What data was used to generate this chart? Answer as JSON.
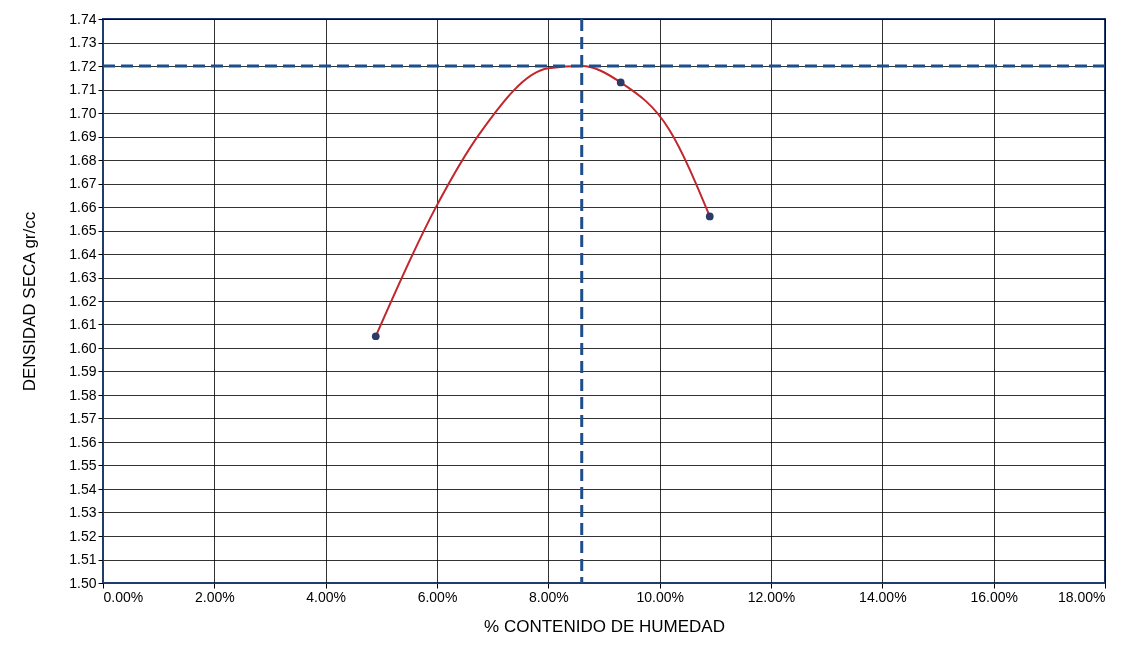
{
  "chart_data": {
    "type": "scatter",
    "xlabel": "% CONTENIDO  DE HUMEDAD",
    "ylabel": "DENSIDAD  SECA  gr/cc",
    "xlim": [
      0,
      18
    ],
    "xticks": [
      {
        "value": 0,
        "label": "0.00%"
      },
      {
        "value": 2,
        "label": "2.00%"
      },
      {
        "value": 4,
        "label": "4.00%"
      },
      {
        "value": 6,
        "label": "6.00%"
      },
      {
        "value": 8,
        "label": "8.00%"
      },
      {
        "value": 10,
        "label": "10.00%"
      },
      {
        "value": 12,
        "label": "12.00%"
      },
      {
        "value": 14,
        "label": "14.00%"
      },
      {
        "value": 16,
        "label": "16.00%"
      },
      {
        "value": 18,
        "label": "18.00%"
      }
    ],
    "ylim": [
      1.5,
      1.74
    ],
    "yticks": [
      {
        "value": 1.5,
        "label": "1.50"
      },
      1.51,
      1.52,
      1.53,
      1.54,
      1.55,
      1.56,
      1.57,
      1.58,
      1.59,
      {
        "value": 1.6,
        "label": "1.60"
      },
      1.61,
      1.62,
      1.63,
      1.64,
      1.65,
      1.66,
      1.67,
      1.68,
      1.69,
      {
        "value": 1.7,
        "label": "1.70"
      },
      1.71,
      1.72,
      1.73,
      1.74
    ],
    "grid": true,
    "series": [
      {
        "type": "line",
        "color": "#c0282d",
        "x": [
          4.9,
          5.96,
          6.76,
          8.0,
          8.6,
          9.3,
          10.17,
          10.9
        ],
        "values": [
          1.605,
          1.659,
          1.691,
          1.719,
          1.72,
          1.713,
          1.693,
          1.656
        ]
      },
      {
        "type": "scatter",
        "color": "#2b3a67",
        "marker": "circle",
        "x": [
          4.9,
          9.3,
          10.9
        ],
        "values": [
          1.605,
          1.713,
          1.656
        ]
      }
    ],
    "ref_lines": [
      {
        "axis": "y",
        "value": 1.72,
        "color": "#1f4e8c",
        "line_style": "dashed"
      },
      {
        "axis": "x",
        "value": 8.6,
        "color": "#1f4e8c",
        "line_style": "dashed"
      }
    ]
  }
}
